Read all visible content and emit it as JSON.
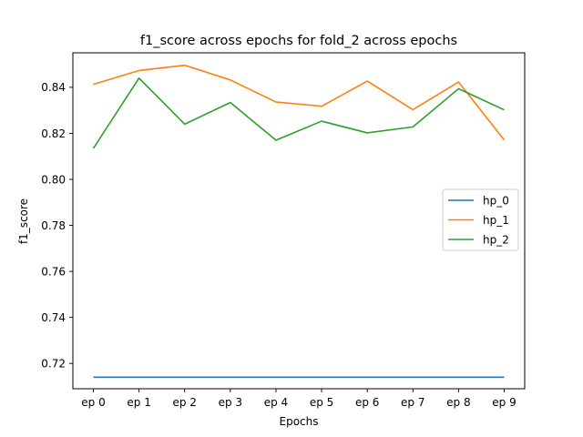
{
  "chart_data": {
    "type": "line",
    "title": "f1_score across epochs for fold_2 across epochs",
    "xlabel": "Epochs",
    "ylabel": "f1_score",
    "categories": [
      "ep 0",
      "ep 1",
      "ep 2",
      "ep 3",
      "ep 4",
      "ep 5",
      "ep 6",
      "ep 7",
      "ep 8",
      "ep 9"
    ],
    "ylim": [
      0.709,
      0.855
    ],
    "yticks": [
      0.72,
      0.74,
      0.76,
      0.78,
      0.8,
      0.82,
      0.84
    ],
    "ytick_labels": [
      "0.72",
      "0.74",
      "0.76",
      "0.78",
      "0.80",
      "0.82",
      "0.84"
    ],
    "grid": false,
    "legend_position": "center-right",
    "series": [
      {
        "name": "hp_0",
        "color": "#1f77b4",
        "values": [
          0.714,
          0.714,
          0.714,
          0.714,
          0.714,
          0.714,
          0.714,
          0.714,
          0.714,
          0.714
        ]
      },
      {
        "name": "hp_1",
        "color": "#ff7f0e",
        "values": [
          0.8413,
          0.8473,
          0.8496,
          0.8432,
          0.8336,
          0.8318,
          0.8427,
          0.8303,
          0.8423,
          0.8171
        ]
      },
      {
        "name": "hp_2",
        "color": "#2ca02c",
        "values": [
          0.8135,
          0.844,
          0.824,
          0.8334,
          0.817,
          0.8253,
          0.8202,
          0.8228,
          0.8394,
          0.8302
        ]
      }
    ]
  }
}
